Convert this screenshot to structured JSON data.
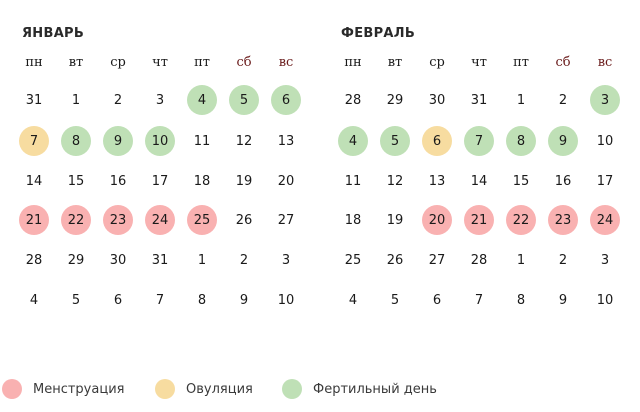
{
  "colors": {
    "menstruation": "#f9b1b1",
    "ovulation": "#f7dca0",
    "fertile": "#bfe0b6"
  },
  "weekdays": [
    "пн",
    "вт",
    "ср",
    "чт",
    "пт",
    "сб",
    "вс"
  ],
  "months": [
    {
      "title": "ЯНВАРЬ",
      "weeks": [
        [
          {
            "d": "31"
          },
          {
            "d": "1"
          },
          {
            "d": "2"
          },
          {
            "d": "3"
          },
          {
            "d": "4",
            "t": "fertile"
          },
          {
            "d": "5",
            "t": "fertile"
          },
          {
            "d": "6",
            "t": "fertile"
          }
        ],
        [
          {
            "d": "7",
            "t": "ovulation"
          },
          {
            "d": "8",
            "t": "fertile"
          },
          {
            "d": "9",
            "t": "fertile"
          },
          {
            "d": "10",
            "t": "fertile"
          },
          {
            "d": "11"
          },
          {
            "d": "12"
          },
          {
            "d": "13"
          }
        ],
        [
          {
            "d": "14"
          },
          {
            "d": "15"
          },
          {
            "d": "16"
          },
          {
            "d": "17"
          },
          {
            "d": "18"
          },
          {
            "d": "19"
          },
          {
            "d": "20"
          }
        ],
        [
          {
            "d": "21",
            "t": "menstruation"
          },
          {
            "d": "22",
            "t": "menstruation"
          },
          {
            "d": "23",
            "t": "menstruation"
          },
          {
            "d": "24",
            "t": "menstruation"
          },
          {
            "d": "25",
            "t": "menstruation"
          },
          {
            "d": "26"
          },
          {
            "d": "27"
          }
        ],
        [
          {
            "d": "28"
          },
          {
            "d": "29"
          },
          {
            "d": "30"
          },
          {
            "d": "31"
          },
          {
            "d": "1"
          },
          {
            "d": "2"
          },
          {
            "d": "3"
          }
        ],
        [
          {
            "d": "4"
          },
          {
            "d": "5"
          },
          {
            "d": "6"
          },
          {
            "d": "7"
          },
          {
            "d": "8"
          },
          {
            "d": "9"
          },
          {
            "d": "10"
          }
        ]
      ]
    },
    {
      "title": "ФЕВРАЛЬ",
      "weeks": [
        [
          {
            "d": "28"
          },
          {
            "d": "29"
          },
          {
            "d": "30"
          },
          {
            "d": "31"
          },
          {
            "d": "1"
          },
          {
            "d": "2"
          },
          {
            "d": "3",
            "t": "fertile"
          }
        ],
        [
          {
            "d": "4",
            "t": "fertile"
          },
          {
            "d": "5",
            "t": "fertile"
          },
          {
            "d": "6",
            "t": "ovulation"
          },
          {
            "d": "7",
            "t": "fertile"
          },
          {
            "d": "8",
            "t": "fertile"
          },
          {
            "d": "9",
            "t": "fertile"
          },
          {
            "d": "10"
          }
        ],
        [
          {
            "d": "11"
          },
          {
            "d": "12"
          },
          {
            "d": "13"
          },
          {
            "d": "14"
          },
          {
            "d": "15"
          },
          {
            "d": "16"
          },
          {
            "d": "17"
          }
        ],
        [
          {
            "d": "18"
          },
          {
            "d": "19"
          },
          {
            "d": "20",
            "t": "menstruation"
          },
          {
            "d": "21",
            "t": "menstruation"
          },
          {
            "d": "22",
            "t": "menstruation"
          },
          {
            "d": "23",
            "t": "menstruation"
          },
          {
            "d": "24",
            "t": "menstruation"
          }
        ],
        [
          {
            "d": "25"
          },
          {
            "d": "26"
          },
          {
            "d": "27"
          },
          {
            "d": "28"
          },
          {
            "d": "1"
          },
          {
            "d": "2"
          },
          {
            "d": "3"
          }
        ],
        [
          {
            "d": "4"
          },
          {
            "d": "5"
          },
          {
            "d": "6"
          },
          {
            "d": "7"
          },
          {
            "d": "8"
          },
          {
            "d": "9"
          },
          {
            "d": "10"
          }
        ]
      ]
    }
  ],
  "legend": [
    {
      "key": "menstruation",
      "label": "Менструация"
    },
    {
      "key": "ovulation",
      "label": "Овуляция"
    },
    {
      "key": "fertile",
      "label": "Фертильный день"
    }
  ]
}
